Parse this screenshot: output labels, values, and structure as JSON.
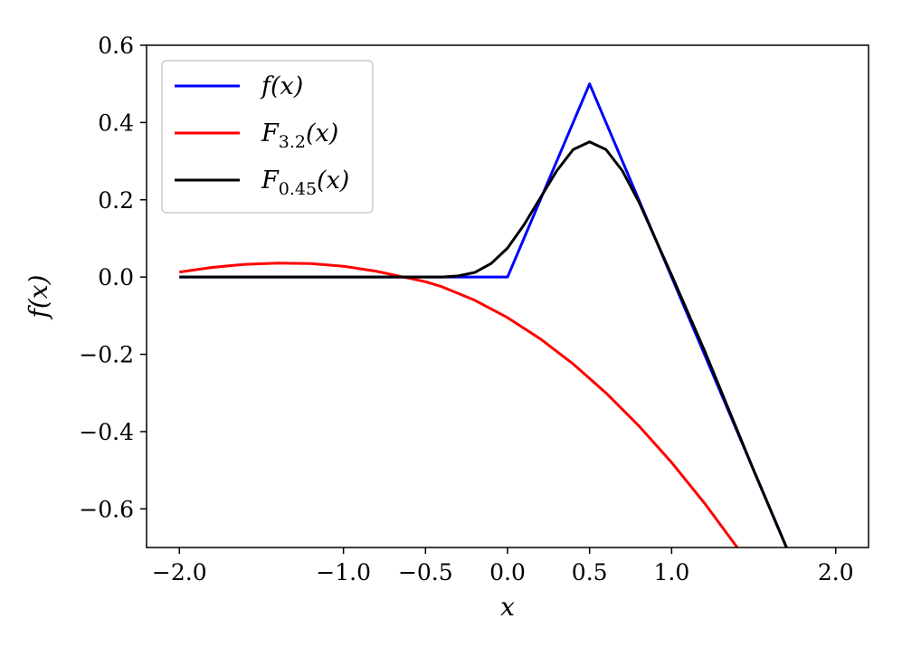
{
  "chart_data": {
    "type": "line",
    "title": "",
    "xlabel": "x",
    "ylabel": "f(x)",
    "xlim": [
      -2.2,
      2.2
    ],
    "ylim": [
      -0.7,
      0.6
    ],
    "x_ticks": [
      -2.0,
      -1.0,
      -0.5,
      0.0,
      0.5,
      1.0,
      2.0
    ],
    "x_tick_labels": [
      "−2.0",
      "−1.0",
      "−0.5",
      "0.0",
      "0.5",
      "1.0",
      "2.0"
    ],
    "y_ticks": [
      0.6,
      0.4,
      0.2,
      0.0,
      -0.2,
      -0.4,
      -0.6
    ],
    "y_tick_labels": [
      "0.6",
      "0.4",
      "0.2",
      "0.0",
      "−0.2",
      "−0.4",
      "−0.6"
    ],
    "grid": false,
    "legend_position": "top-left",
    "series": [
      {
        "name": "f(x)",
        "legend_main": "f(x)",
        "legend_sub": "",
        "legend_tail": "",
        "color": "#0000ff",
        "x": [
          -2.0,
          0.0,
          0.5,
          1.0,
          1.5,
          1.7
        ],
        "y": [
          0.0,
          0.0,
          0.5,
          0.0,
          -0.5,
          -0.7
        ]
      },
      {
        "name": "F3.2(x)",
        "legend_main": "F",
        "legend_sub": "3.2",
        "legend_tail": "(x)",
        "color": "#ff0000",
        "x": [
          -2.0,
          -1.8,
          -1.6,
          -1.4,
          -1.2,
          -1.0,
          -0.8,
          -0.6,
          -0.5,
          -0.4,
          -0.2,
          0.0,
          0.2,
          0.4,
          0.6,
          0.8,
          1.0,
          1.2,
          1.4
        ],
        "y": [
          0.013,
          0.025,
          0.033,
          0.036,
          0.035,
          0.028,
          0.015,
          -0.003,
          -0.012,
          -0.025,
          -0.06,
          -0.105,
          -0.16,
          -0.225,
          -0.3,
          -0.385,
          -0.48,
          -0.585,
          -0.7
        ]
      },
      {
        "name": "F0.45(x)",
        "legend_main": "F",
        "legend_sub": "0.45",
        "legend_tail": "(x)",
        "color": "#000000",
        "x": [
          -2.0,
          -0.4,
          -0.3,
          -0.2,
          -0.1,
          0.0,
          0.1,
          0.2,
          0.3,
          0.4,
          0.5,
          0.6,
          0.7,
          0.8,
          0.9,
          1.0,
          1.2,
          1.5,
          1.7
        ],
        "y": [
          0.0,
          0.0,
          0.003,
          0.012,
          0.035,
          0.075,
          0.135,
          0.205,
          0.275,
          0.33,
          0.35,
          0.33,
          0.275,
          0.195,
          0.1,
          0.005,
          -0.19,
          -0.5,
          -0.7
        ]
      }
    ]
  }
}
